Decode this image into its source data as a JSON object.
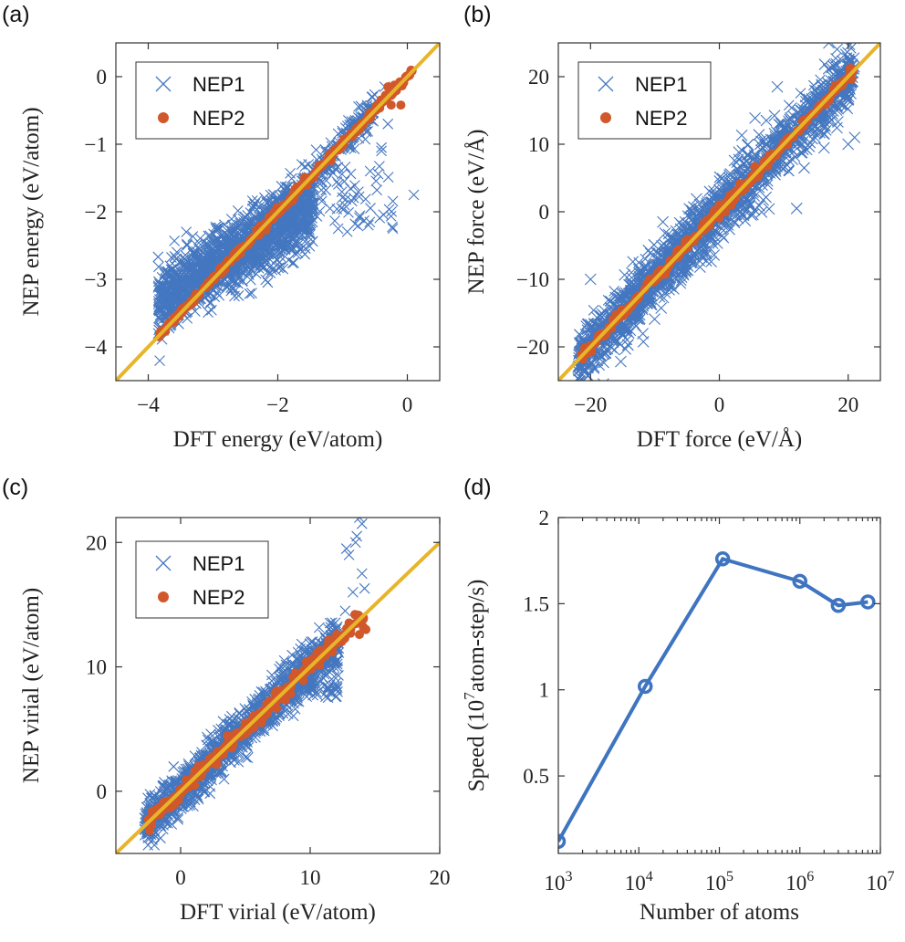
{
  "colors": {
    "nep1": "#4477c0",
    "nep2": "#d0582a",
    "identity_line": "#e8b52a",
    "speed_line": "#3f74c0",
    "axis": "#333333"
  },
  "chart_data": [
    {
      "panel_label": "(a)",
      "type": "scatter",
      "xlabel": "DFT energy (eV/atom)",
      "ylabel": "NEP energy (eV/atom)",
      "xlim": [
        -4.5,
        0.5
      ],
      "ylim": [
        -4.5,
        0.5
      ],
      "xticks": [
        -4,
        -2,
        0
      ],
      "yticks": [
        -4,
        -3,
        -2,
        -1,
        0
      ],
      "legend": {
        "position": "top-left",
        "entries": [
          "NEP1",
          "NEP2"
        ]
      },
      "series": [
        {
          "name": "NEP1",
          "marker": "cross"
        },
        {
          "name": "NEP2",
          "marker": "dot"
        }
      ],
      "identity_line": true
    },
    {
      "panel_label": "(b)",
      "type": "scatter",
      "xlabel": "DFT force (eV/Å)",
      "ylabel": "NEP force (eV/Å)",
      "xlim": [
        -25,
        25
      ],
      "ylim": [
        -25,
        25
      ],
      "xticks": [
        -20,
        0,
        20
      ],
      "yticks": [
        -20,
        -10,
        0,
        10,
        20
      ],
      "legend": {
        "position": "top-left",
        "entries": [
          "NEP1",
          "NEP2"
        ]
      },
      "series": [
        {
          "name": "NEP1",
          "marker": "cross"
        },
        {
          "name": "NEP2",
          "marker": "dot"
        }
      ],
      "identity_line": true
    },
    {
      "panel_label": "(c)",
      "type": "scatter",
      "xlabel": "DFT virial (eV/atom)",
      "ylabel": "NEP virial (eV/atom)",
      "xlim": [
        -5,
        20
      ],
      "ylim": [
        -5,
        22
      ],
      "xticks": [
        0,
        10,
        20
      ],
      "yticks": [
        0,
        10,
        20
      ],
      "legend": {
        "position": "top-left",
        "entries": [
          "NEP1",
          "NEP2"
        ]
      },
      "series": [
        {
          "name": "NEP1",
          "marker": "cross"
        },
        {
          "name": "NEP2",
          "marker": "dot"
        }
      ],
      "identity_line": true
    },
    {
      "panel_label": "(d)",
      "type": "line",
      "xlabel": "Number of atoms",
      "ylabel": "Speed (10^7 atom-step/s)",
      "ylabel_parts": {
        "pre": "Speed (10",
        "sup": "7",
        "post": "atom-step/s)"
      },
      "xscale": "log",
      "xlim": [
        1000,
        10000000
      ],
      "ylim": [
        0.05,
        2
      ],
      "xticks": [
        1000,
        10000,
        100000,
        1000000,
        10000000
      ],
      "xtick_labels": [
        {
          "base": "10",
          "exp": "3"
        },
        {
          "base": "10",
          "exp": "4"
        },
        {
          "base": "10",
          "exp": "5"
        },
        {
          "base": "10",
          "exp": "6"
        },
        {
          "base": "10",
          "exp": "7"
        }
      ],
      "yticks": [
        0.5,
        1,
        1.5,
        2
      ],
      "ytick_labels": [
        "0.5",
        "1",
        "1.5",
        "2"
      ],
      "x": [
        1000,
        12000,
        110000,
        1000000,
        3000000,
        7000000
      ],
      "y": [
        0.12,
        1.02,
        1.76,
        1.63,
        1.49,
        1.51
      ],
      "marker": "circle"
    }
  ]
}
